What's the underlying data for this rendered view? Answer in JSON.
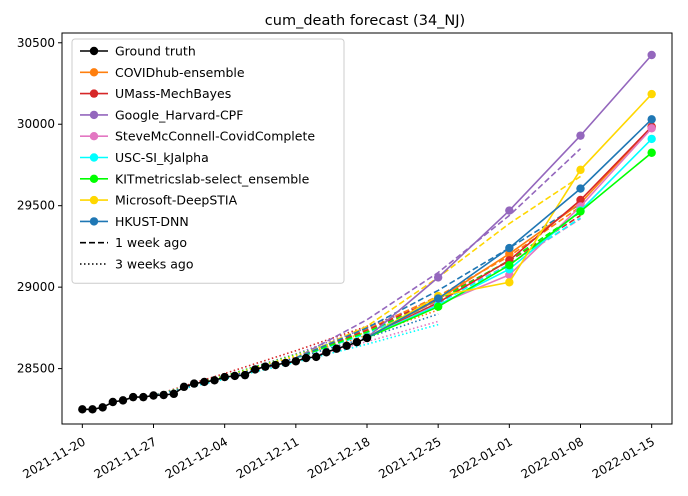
{
  "chart_data": {
    "type": "line",
    "title": "cum_death forecast (34_NJ)",
    "xlabel": "",
    "ylabel": "",
    "x_ticks": [
      "2021-11-20",
      "2021-11-27",
      "2021-12-04",
      "2021-12-11",
      "2021-12-18",
      "2021-12-25",
      "2022-01-01",
      "2022-01-08",
      "2022-01-15"
    ],
    "y_ticks": [
      28500,
      29000,
      29500,
      30000,
      30500
    ],
    "xlim": [
      "2021-11-18",
      "2022-01-17"
    ],
    "ylim": [
      28160,
      30560
    ],
    "grid": false,
    "legend_position": "top-left",
    "legend": [
      {
        "label": "Ground truth",
        "color": "#000000",
        "style": "solid",
        "marker": true
      },
      {
        "label": "COVIDhub-ensemble",
        "color": "#ff7f0e",
        "style": "solid",
        "marker": true
      },
      {
        "label": "UMass-MechBayes",
        "color": "#d62728",
        "style": "solid",
        "marker": true
      },
      {
        "label": "Google_Harvard-CPF",
        "color": "#9467bd",
        "style": "solid",
        "marker": true
      },
      {
        "label": "SteveMcConnell-CovidComplete",
        "color": "#e377c2",
        "style": "solid",
        "marker": true
      },
      {
        "label": "USC-SI_kJalpha",
        "color": "#00ffff",
        "style": "solid",
        "marker": true
      },
      {
        "label": "KITmetricslab-select_ensemble",
        "color": "#00ff00",
        "style": "solid",
        "marker": true
      },
      {
        "label": "Microsoft-DeepSTIA",
        "color": "#ffd700",
        "style": "solid",
        "marker": true
      },
      {
        "label": "HKUST-DNN",
        "color": "#1f77b4",
        "style": "solid",
        "marker": true
      },
      {
        "label": "1 week ago",
        "color": "#000000",
        "style": "dashed",
        "marker": false
      },
      {
        "label": "3 weeks ago",
        "color": "#000000",
        "style": "dotted",
        "marker": false
      }
    ],
    "ground_truth": {
      "name": "Ground truth",
      "color": "#000000",
      "points": [
        [
          "2021-11-20",
          28250
        ],
        [
          "2021-11-21",
          28250
        ],
        [
          "2021-11-22",
          28262
        ],
        [
          "2021-11-23",
          28295
        ],
        [
          "2021-11-24",
          28305
        ],
        [
          "2021-11-25",
          28325
        ],
        [
          "2021-11-26",
          28325
        ],
        [
          "2021-11-27",
          28335
        ],
        [
          "2021-11-28",
          28338
        ],
        [
          "2021-11-29",
          28345
        ],
        [
          "2021-11-30",
          28388
        ],
        [
          "2021-12-01",
          28408
        ],
        [
          "2021-12-02",
          28418
        ],
        [
          "2021-12-03",
          28428
        ],
        [
          "2021-12-04",
          28448
        ],
        [
          "2021-12-05",
          28455
        ],
        [
          "2021-12-06",
          28460
        ],
        [
          "2021-12-07",
          28495
        ],
        [
          "2021-12-08",
          28512
        ],
        [
          "2021-12-09",
          28522
        ],
        [
          "2021-12-10",
          28535
        ],
        [
          "2021-12-11",
          28545
        ],
        [
          "2021-12-12",
          28565
        ],
        [
          "2021-12-13",
          28572
        ],
        [
          "2021-12-14",
          28600
        ],
        [
          "2021-12-15",
          28622
        ],
        [
          "2021-12-16",
          28640
        ],
        [
          "2021-12-17",
          28662
        ],
        [
          "2021-12-18",
          28688
        ]
      ]
    },
    "forecasts_current": [
      {
        "name": "COVIDhub-ensemble",
        "color": "#ff7f0e",
        "points": [
          [
            "2021-12-18",
            28690
          ],
          [
            "2021-12-25",
            28925
          ],
          [
            "2022-01-01",
            29205
          ],
          [
            "2022-01-08",
            29515
          ],
          [
            "2022-01-15",
            29985
          ]
        ]
      },
      {
        "name": "UMass-MechBayes",
        "color": "#d62728",
        "points": [
          [
            "2021-12-18",
            28690
          ],
          [
            "2021-12-25",
            28905
          ],
          [
            "2022-01-01",
            29165
          ],
          [
            "2022-01-08",
            29535
          ],
          [
            "2022-01-15",
            29985
          ]
        ]
      },
      {
        "name": "Google_Harvard-CPF",
        "color": "#9467bd",
        "points": [
          [
            "2021-12-18",
            28690
          ],
          [
            "2021-12-25",
            29060
          ],
          [
            "2022-01-01",
            29470
          ],
          [
            "2022-01-08",
            29930
          ],
          [
            "2022-01-15",
            30425
          ]
        ]
      },
      {
        "name": "SteveMcConnell-CovidComplete",
        "color": "#e377c2",
        "points": [
          [
            "2021-12-18",
            28690
          ],
          [
            "2021-12-25",
            28895
          ],
          [
            "2022-01-01",
            29075
          ],
          [
            "2022-01-08",
            29495
          ],
          [
            "2022-01-15",
            29975
          ]
        ]
      },
      {
        "name": "USC-SI_kJalpha",
        "color": "#00ffff",
        "points": [
          [
            "2021-12-18",
            28690
          ],
          [
            "2021-12-25",
            28890
          ],
          [
            "2022-01-01",
            29110
          ],
          [
            "2022-01-08",
            29470
          ],
          [
            "2022-01-15",
            29910
          ]
        ]
      },
      {
        "name": "KITmetricslab-select_ensemble",
        "color": "#00ff00",
        "points": [
          [
            "2021-12-18",
            28690
          ],
          [
            "2021-12-25",
            28880
          ],
          [
            "2022-01-01",
            29135
          ],
          [
            "2022-01-08",
            29465
          ],
          [
            "2022-01-15",
            29825
          ]
        ]
      },
      {
        "name": "Microsoft-DeepSTIA",
        "color": "#ffd700",
        "points": [
          [
            "2021-12-18",
            28690
          ],
          [
            "2021-12-25",
            28945
          ],
          [
            "2022-01-01",
            29030
          ],
          [
            "2022-01-08",
            29720
          ],
          [
            "2022-01-15",
            30185
          ]
        ]
      },
      {
        "name": "HKUST-DNN",
        "color": "#1f77b4",
        "points": [
          [
            "2021-12-18",
            28690
          ],
          [
            "2021-12-25",
            28930
          ],
          [
            "2022-01-01",
            29240
          ],
          [
            "2022-01-08",
            29605
          ],
          [
            "2022-01-15",
            30030
          ]
        ]
      }
    ],
    "forecasts_1_week_ago": [
      {
        "name": "COVIDhub-ensemble",
        "color": "#ff7f0e",
        "points": [
          [
            "2021-12-11",
            28565
          ],
          [
            "2021-12-18",
            28740
          ],
          [
            "2021-12-25",
            28945
          ],
          [
            "2022-01-01",
            29190
          ],
          [
            "2022-01-08",
            29495
          ]
        ]
      },
      {
        "name": "UMass-MechBayes",
        "color": "#d62728",
        "points": [
          [
            "2021-12-11",
            28565
          ],
          [
            "2021-12-18",
            28735
          ],
          [
            "2021-12-25",
            28930
          ],
          [
            "2022-01-01",
            29160
          ],
          [
            "2022-01-08",
            29440
          ]
        ]
      },
      {
        "name": "Google_Harvard-CPF",
        "color": "#9467bd",
        "points": [
          [
            "2021-12-11",
            28565
          ],
          [
            "2021-12-18",
            28800
          ],
          [
            "2021-12-25",
            29090
          ],
          [
            "2022-01-01",
            29440
          ],
          [
            "2022-01-08",
            29850
          ]
        ]
      },
      {
        "name": "SteveMcConnell-CovidComplete",
        "color": "#e377c2",
        "points": [
          [
            "2021-12-11",
            28565
          ],
          [
            "2021-12-18",
            28720
          ],
          [
            "2021-12-25",
            28915
          ],
          [
            "2022-01-01",
            29140
          ],
          [
            "2022-01-08",
            29420
          ]
        ]
      },
      {
        "name": "USC-SI_kJalpha",
        "color": "#00ffff",
        "points": [
          [
            "2021-12-11",
            28565
          ],
          [
            "2021-12-18",
            28715
          ],
          [
            "2021-12-25",
            28900
          ],
          [
            "2022-01-01",
            29140
          ],
          [
            "2022-01-08",
            29425
          ]
        ]
      },
      {
        "name": "KITmetricslab-select_ensemble",
        "color": "#00ff00",
        "points": [
          [
            "2021-12-11",
            28565
          ],
          [
            "2021-12-18",
            28725
          ],
          [
            "2021-12-25",
            28920
          ],
          [
            "2022-01-01",
            29165
          ],
          [
            "2022-01-08",
            29460
          ]
        ]
      },
      {
        "name": "Microsoft-DeepSTIA",
        "color": "#ffd700",
        "points": [
          [
            "2021-12-11",
            28565
          ],
          [
            "2021-12-18",
            28760
          ],
          [
            "2021-12-25",
            29060
          ],
          [
            "2022-01-01",
            29390
          ],
          [
            "2022-01-08",
            29680
          ]
        ]
      },
      {
        "name": "HKUST-DNN",
        "color": "#1f77b4",
        "points": [
          [
            "2021-12-11",
            28565
          ],
          [
            "2021-12-18",
            28750
          ],
          [
            "2021-12-25",
            28980
          ],
          [
            "2022-01-01",
            29240
          ],
          [
            "2022-01-08",
            29510
          ]
        ]
      }
    ],
    "forecasts_3_weeks_ago": [
      {
        "name": "COVIDhub-ensemble",
        "color": "#ff7f0e",
        "points": [
          [
            "2021-11-27",
            28335
          ],
          [
            "2021-12-04",
            28450
          ],
          [
            "2021-12-11",
            28575
          ],
          [
            "2021-12-18",
            28705
          ],
          [
            "2021-12-25",
            28860
          ]
        ]
      },
      {
        "name": "UMass-MechBayes",
        "color": "#d62728",
        "points": [
          [
            "2021-11-27",
            28335
          ],
          [
            "2021-12-04",
            28470
          ],
          [
            "2021-12-11",
            28610
          ],
          [
            "2021-12-18",
            28760
          ],
          [
            "2021-12-25",
            28915
          ]
        ]
      },
      {
        "name": "Google_Harvard-CPF",
        "color": "#9467bd",
        "points": [
          [
            "2021-11-27",
            28335
          ],
          [
            "2021-12-04",
            28455
          ],
          [
            "2021-12-11",
            28590
          ],
          [
            "2021-12-18",
            28750
          ],
          [
            "2021-12-25",
            28935
          ]
        ]
      },
      {
        "name": "SteveMcConnell-CovidComplete",
        "color": "#e377c2",
        "points": [
          [
            "2021-11-27",
            28335
          ],
          [
            "2021-12-04",
            28440
          ],
          [
            "2021-12-11",
            28550
          ],
          [
            "2021-12-18",
            28665
          ],
          [
            "2021-12-25",
            28790
          ]
        ]
      },
      {
        "name": "USC-SI_kJalpha",
        "color": "#00ffff",
        "points": [
          [
            "2021-11-27",
            28335
          ],
          [
            "2021-12-04",
            28435
          ],
          [
            "2021-12-11",
            28540
          ],
          [
            "2021-12-18",
            28650
          ],
          [
            "2021-12-25",
            28770
          ]
        ]
      },
      {
        "name": "KITmetricslab-select_ensemble",
        "color": "#00ff00",
        "points": [
          [
            "2021-11-27",
            28335
          ],
          [
            "2021-12-04",
            28455
          ],
          [
            "2021-12-11",
            28585
          ],
          [
            "2021-12-18",
            28725
          ],
          [
            "2021-12-25",
            28880
          ]
        ]
      },
      {
        "name": "Microsoft-DeepSTIA",
        "color": "#ffd700",
        "points": [
          [
            "2021-11-27",
            28335
          ],
          [
            "2021-12-04",
            28450
          ],
          [
            "2021-12-11",
            28580
          ],
          [
            "2021-12-18",
            28725
          ],
          [
            "2021-12-25",
            28885
          ]
        ]
      },
      {
        "name": "HKUST-DNN",
        "color": "#1f77b4",
        "points": [
          [
            "2021-11-27",
            28335
          ],
          [
            "2021-12-04",
            28445
          ],
          [
            "2021-12-11",
            28565
          ],
          [
            "2021-12-18",
            28690
          ],
          [
            "2021-12-25",
            28835
          ]
        ]
      }
    ]
  }
}
